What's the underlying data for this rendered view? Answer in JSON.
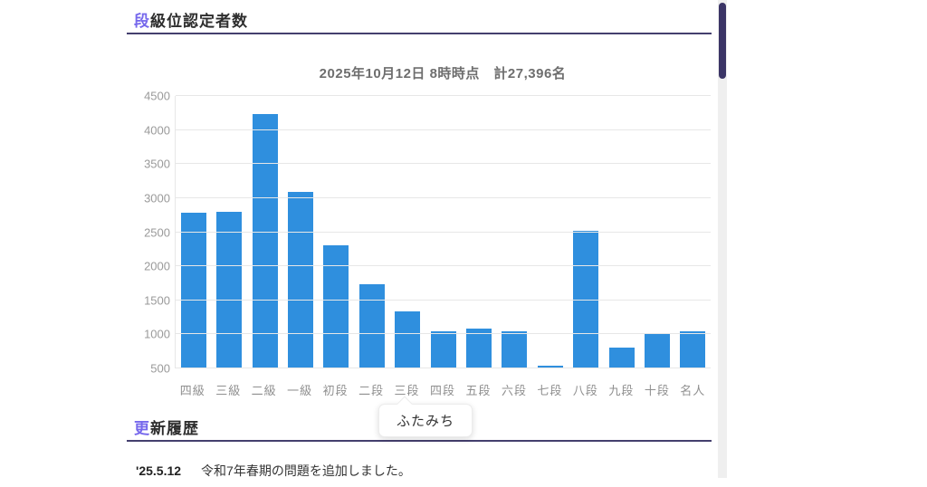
{
  "page": {
    "accent_color": "#7668ec",
    "rule_color": "#443f6e",
    "background": "#ffffff"
  },
  "section_dan": {
    "title_accent": "段",
    "title_rest": "級位認定者数"
  },
  "chart_data": {
    "type": "bar",
    "title": "2025年10月12日 8時時点　計27,396名",
    "categories": [
      "四級",
      "三級",
      "二級",
      "一級",
      "初段",
      "二段",
      "三段",
      "四段",
      "五段",
      "六段",
      "七段",
      "八段",
      "九段",
      "十段",
      "名人"
    ],
    "values": [
      2780,
      2800,
      4240,
      3090,
      2310,
      1730,
      1340,
      1040,
      1090,
      1040,
      546,
      2520,
      810,
      1020,
      1040
    ],
    "total": 27396,
    "ylim": [
      500,
      4500
    ],
    "ytick_step": 500,
    "bar_color": "#2f8fde",
    "gridline_color": "#e7e7e7",
    "grid": true,
    "legend": false,
    "xlabel": "",
    "ylabel": ""
  },
  "tooltip": {
    "text": "ふたみち",
    "points_to": "三段"
  },
  "section_update": {
    "title_accent": "更",
    "title_rest": "新履歴"
  },
  "update_entries": [
    {
      "date": "'25.5.12",
      "text": "令和7年春期の問題を追加しました。"
    }
  ],
  "scrollbar": {
    "thumb_color": "#3b3566",
    "track_color": "#efefef"
  }
}
